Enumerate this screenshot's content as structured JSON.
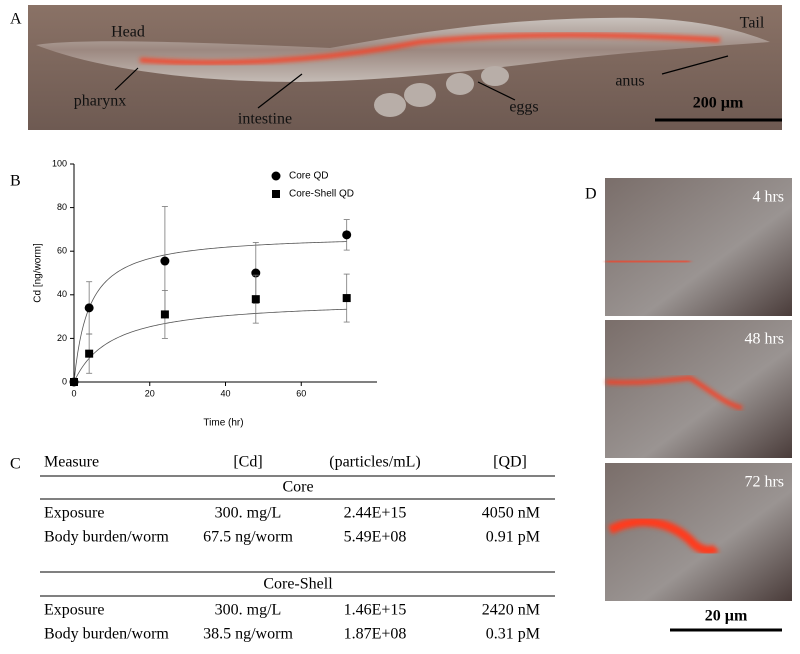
{
  "panel_a": {
    "label": "A",
    "annotations": [
      "Head",
      "Tail",
      "pharynx",
      "intestine",
      "eggs",
      "anus"
    ],
    "scale_bar": "200 µm"
  },
  "chart_data": {
    "type": "scatter",
    "label": "B",
    "x_label": "Time (hr)",
    "y_label": "Cd [ng/worm]",
    "xlim": [
      0,
      80
    ],
    "ylim": [
      0,
      100
    ],
    "xticks": [
      0,
      20,
      40,
      60
    ],
    "yticks": [
      0,
      20,
      40,
      60,
      80,
      100
    ],
    "series": [
      {
        "name": "Core QD",
        "marker": "circle",
        "color": "#000000",
        "x": [
          0,
          4,
          24,
          48,
          72
        ],
        "values": [
          0,
          34,
          55.5,
          50,
          67.5
        ],
        "errors": [
          0,
          12,
          25,
          14,
          7
        ],
        "fit": {
          "max": 68,
          "half_time": 4
        }
      },
      {
        "name": "Core-Shell QD",
        "marker": "square",
        "color": "#000000",
        "x": [
          0,
          4,
          24,
          48,
          72
        ],
        "values": [
          0,
          13,
          31,
          38,
          38.5
        ],
        "errors": [
          0,
          9,
          11,
          11,
          11
        ],
        "fit": {
          "max": 38,
          "half_time": 10
        }
      }
    ]
  },
  "panel_c": {
    "label": "C",
    "header": [
      "Measure",
      "[Cd]",
      "(particles/mL)",
      "[QD]"
    ],
    "sections": [
      {
        "title": "Core",
        "rows": [
          [
            "Exposure",
            "300. mg/L",
            "2.44E+15",
            "4050 nM"
          ],
          [
            "Body burden/worm",
            "67.5 ng/worm",
            "5.49E+08",
            "0.91 pM"
          ]
        ]
      },
      {
        "title": "Core-Shell",
        "rows": [
          [
            "Exposure",
            "300. mg/L",
            "1.46E+15",
            "2420 nM"
          ],
          [
            "Body burden/worm",
            "38.5 ng/worm",
            "1.87E+08",
            "0.31 pM"
          ]
        ]
      }
    ]
  },
  "panel_d": {
    "label": "D",
    "times": [
      "4 hrs",
      "48 hrs",
      "72 hrs"
    ],
    "scale_bar": "20 µm"
  }
}
